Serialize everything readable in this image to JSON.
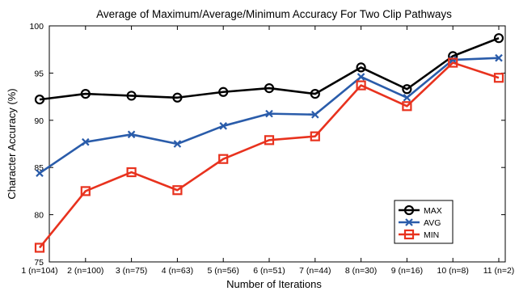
{
  "chart_data": {
    "type": "line",
    "title": "Average of Maximum/Average/Minimum Accuracy For Two Clip Pathways",
    "xlabel": "Number of Iterations",
    "ylabel": "Character Accuracy (%)",
    "categories": [
      "1 (n=104)",
      "2 (n=100)",
      "3 (n=75)",
      "4 (n=63)",
      "5 (n=56)",
      "6 (n=51)",
      "7 (n=44)",
      "8 (n=30)",
      "9 (n=16)",
      "10 (n=8)",
      "11 (n=2)"
    ],
    "ylim": [
      75,
      100
    ],
    "yticks": [
      75,
      80,
      85,
      90,
      95,
      100
    ],
    "grid": false,
    "legend_position": "bottom-right",
    "series": [
      {
        "name": "MAX",
        "color": "#000000",
        "marker": "circle",
        "values": [
          92.2,
          92.8,
          92.6,
          92.4,
          93.0,
          93.4,
          92.8,
          95.6,
          93.3,
          96.8,
          98.7
        ]
      },
      {
        "name": "AVG",
        "color": "#2a5caa",
        "marker": "x",
        "values": [
          84.4,
          87.7,
          88.5,
          87.5,
          89.4,
          90.7,
          90.6,
          94.6,
          92.4,
          96.4,
          96.6
        ]
      },
      {
        "name": "MIN",
        "color": "#e8321e",
        "marker": "square",
        "values": [
          76.5,
          82.5,
          84.5,
          82.6,
          85.9,
          87.9,
          88.3,
          93.7,
          91.5,
          96.1,
          94.5
        ]
      }
    ]
  }
}
